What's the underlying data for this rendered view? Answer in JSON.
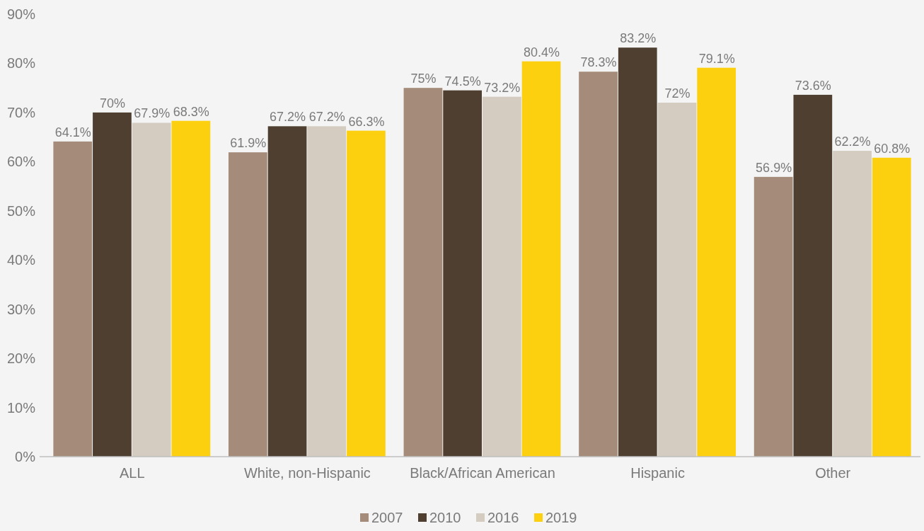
{
  "chart_data": {
    "type": "bar",
    "categories": [
      "ALL",
      "White, non-Hispanic",
      "Black/African American",
      "Hispanic",
      "Other"
    ],
    "series": [
      {
        "name": "2007",
        "color": "#a58c7a",
        "values": [
          64.1,
          61.9,
          75,
          78.3,
          56.9
        ],
        "value_labels": [
          "64.1%",
          "61.9%",
          "75%",
          "78.3%",
          "56.9%"
        ]
      },
      {
        "name": "2010",
        "color": "#4e3f31",
        "values": [
          70,
          67.2,
          74.5,
          83.2,
          73.6
        ],
        "value_labels": [
          "70%",
          "67.2%",
          "74.5%",
          "83.2%",
          "73.6%"
        ]
      },
      {
        "name": "2016",
        "color": "#d4ccc0",
        "values": [
          67.9,
          67.2,
          73.2,
          72,
          62.2
        ],
        "value_labels": [
          "67.9%",
          "67.2%",
          "73.2%",
          "72%",
          "62.2%"
        ]
      },
      {
        "name": "2019",
        "color": "#fcd00f",
        "values": [
          68.3,
          66.3,
          80.4,
          79.1,
          60.8
        ],
        "value_labels": [
          "68.3%",
          "66.3%",
          "80.4%",
          "79.1%",
          "60.8%"
        ]
      }
    ],
    "ylim": [
      0,
      90
    ],
    "yticks": [
      {
        "value": 0,
        "label": "0%"
      },
      {
        "value": 10,
        "label": "10%"
      },
      {
        "value": 20,
        "label": "20%"
      },
      {
        "value": 30,
        "label": "30%"
      },
      {
        "value": 40,
        "label": "40%"
      },
      {
        "value": 50,
        "label": "50%"
      },
      {
        "value": 60,
        "label": "60%"
      },
      {
        "value": 70,
        "label": "70%"
      },
      {
        "value": 80,
        "label": "80%"
      },
      {
        "value": 90,
        "label": "90%"
      }
    ],
    "legend": "bottom"
  }
}
